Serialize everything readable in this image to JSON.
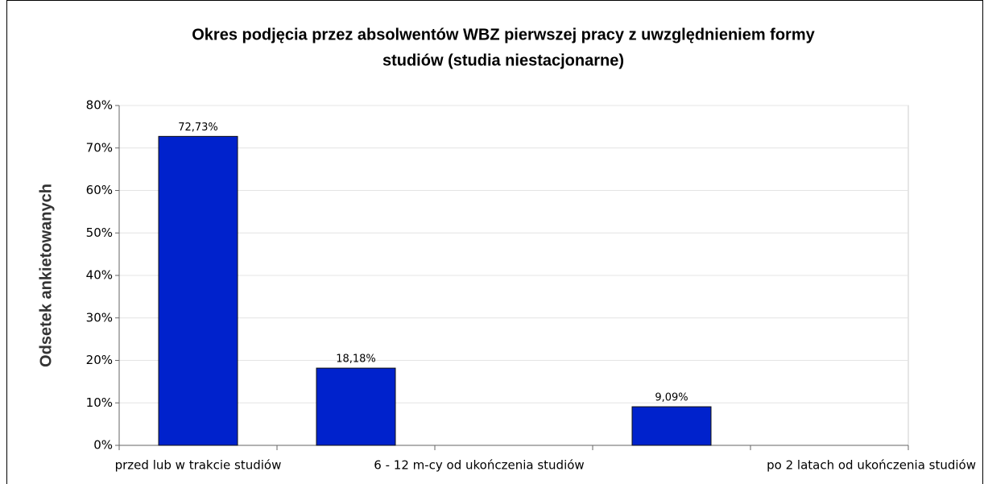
{
  "chart_data": {
    "type": "bar",
    "title": "Okres podjęcia przez absolwentów WBZ pierwszej pracy z uwzględnieniem formy studiów (studia niestacjonarne)",
    "title_lines": [
      "Okres podjęcia przez absolwentów WBZ pierwszej pracy z uwzględnieniem formy",
      "studiów (studia niestacjonarne)"
    ],
    "y_label": "Odsetek ankietowanych",
    "categories": [
      "przed lub w trakcie studiów",
      null,
      "6 - 12 m-cy od ukończenia studiów",
      null,
      "po 2 latach od ukończenia studiów"
    ],
    "values": [
      72.73,
      18.18,
      0,
      9.09,
      0
    ],
    "value_labels": [
      "72,73%",
      "18,18%",
      null,
      "9,09%",
      null
    ],
    "color": "#0022cc",
    "ylim": [
      0,
      80
    ],
    "yticks": [
      {
        "value": 0,
        "label": "0%"
      },
      {
        "value": 10,
        "label": "10%"
      },
      {
        "value": 20,
        "label": "20%"
      },
      {
        "value": 30,
        "label": "30%"
      },
      {
        "value": 40,
        "label": "40%"
      },
      {
        "value": 50,
        "label": "50%"
      },
      {
        "value": 60,
        "label": "60%"
      },
      {
        "value": 70,
        "label": "70%"
      },
      {
        "value": 80,
        "label": "80%"
      }
    ],
    "grid": true
  }
}
